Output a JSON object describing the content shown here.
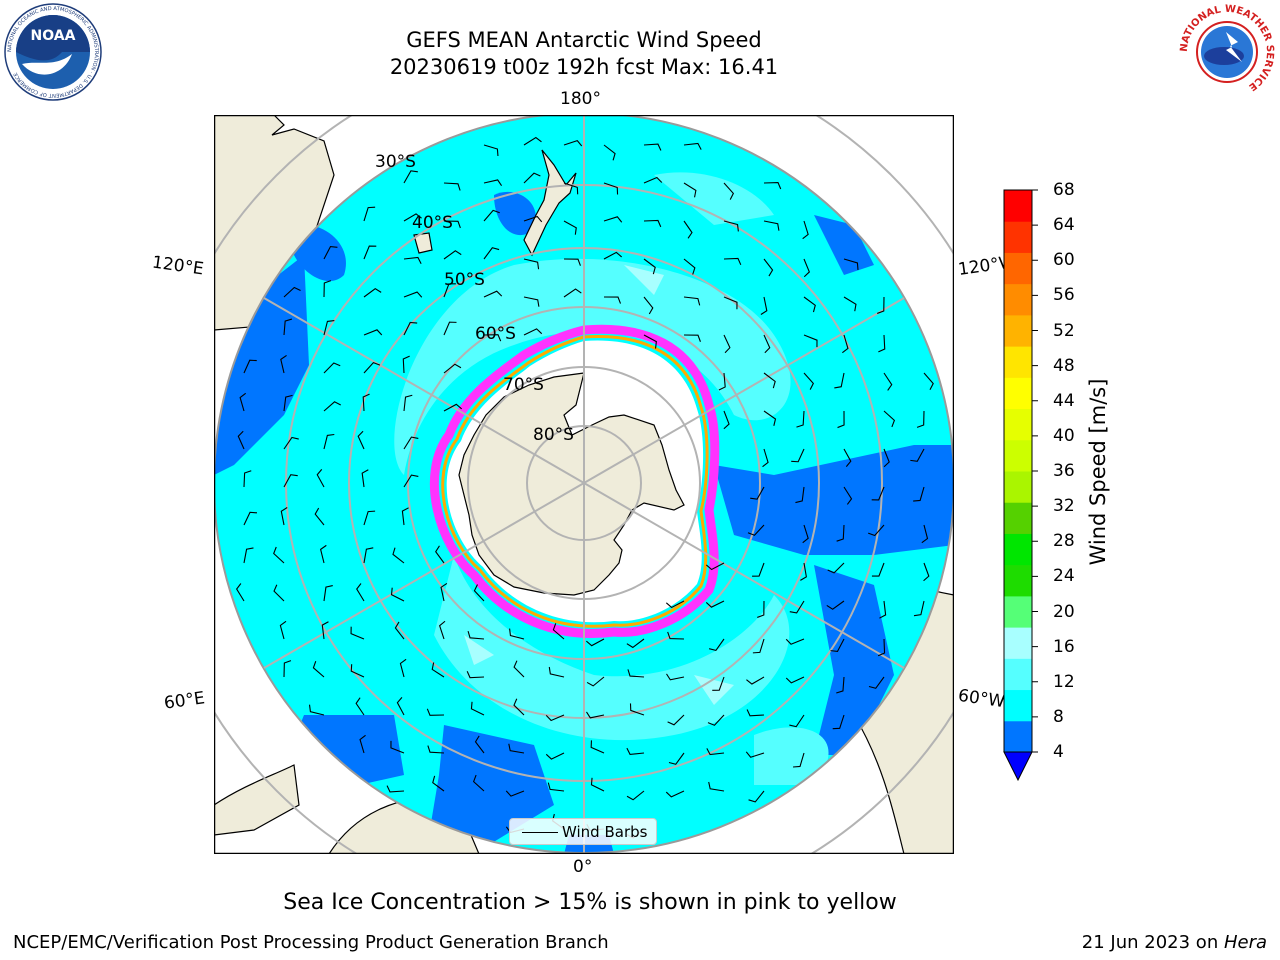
{
  "title": {
    "line1": "GEFS MEAN Antarctic Wind Speed",
    "line2": "20230619 t00z 192h fcst   Max: 16.41"
  },
  "map": {
    "projection": "south-polar-stereographic",
    "meridian_labels": {
      "top": "180°",
      "bottom": "0°",
      "left_upper": "120°E",
      "right_upper": "120°W",
      "left_lower": "60°E",
      "right_lower": "60°W"
    },
    "parallel_labels": [
      "30°S",
      "40°S",
      "50°S",
      "60°S",
      "70°S",
      "80°S"
    ],
    "colors": {
      "land": "#efecda",
      "ice": "#ffffff",
      "ocean_4_8": "#0076ff",
      "ocean_8_12": "#00ffff",
      "ocean_12_16": "#55ffff",
      "ocean_16_20": "#a8ffff",
      "sea_ice_edge": [
        "#ff33ff",
        "#ffaa00",
        "#ffff00"
      ],
      "grid": "#b3b3b3"
    },
    "legend": {
      "label": "Wind Barbs"
    }
  },
  "colorbar": {
    "label": "Wind Speed [m/s]",
    "ticks": [
      "4",
      "8",
      "12",
      "16",
      "20",
      "24",
      "28",
      "32",
      "36",
      "40",
      "44",
      "48",
      "52",
      "56",
      "60",
      "64",
      "68"
    ],
    "colors": [
      "#0076ff",
      "#00ffff",
      "#55ffff",
      "#a8ffff",
      "#55ff77",
      "#1edc00",
      "#00e600",
      "#55d100",
      "#aaf500",
      "#ccff00",
      "#e6ff00",
      "#ffff00",
      "#ffe500",
      "#ffb300",
      "#ff8c00",
      "#ff6600",
      "#ff3300",
      "#ff0000"
    ],
    "under_color": "#0000ff"
  },
  "caption": "Sea Ice Concentration > 15% is shown in pink to yellow",
  "footer": {
    "left": "NCEP/EMC/Verification Post Processing Product Generation Branch",
    "right_prefix": "21 Jun 2023 on ",
    "right_host": "Hera"
  },
  "logos": {
    "noaa": "NOAA",
    "nws_ring": "NATIONAL WEATHER SERVICE",
    "noaa_ring": "NATIONAL OCEANIC AND ATMOSPHERIC ADMINISTRATION · U.S. DEPARTMENT OF COMMERCE"
  }
}
